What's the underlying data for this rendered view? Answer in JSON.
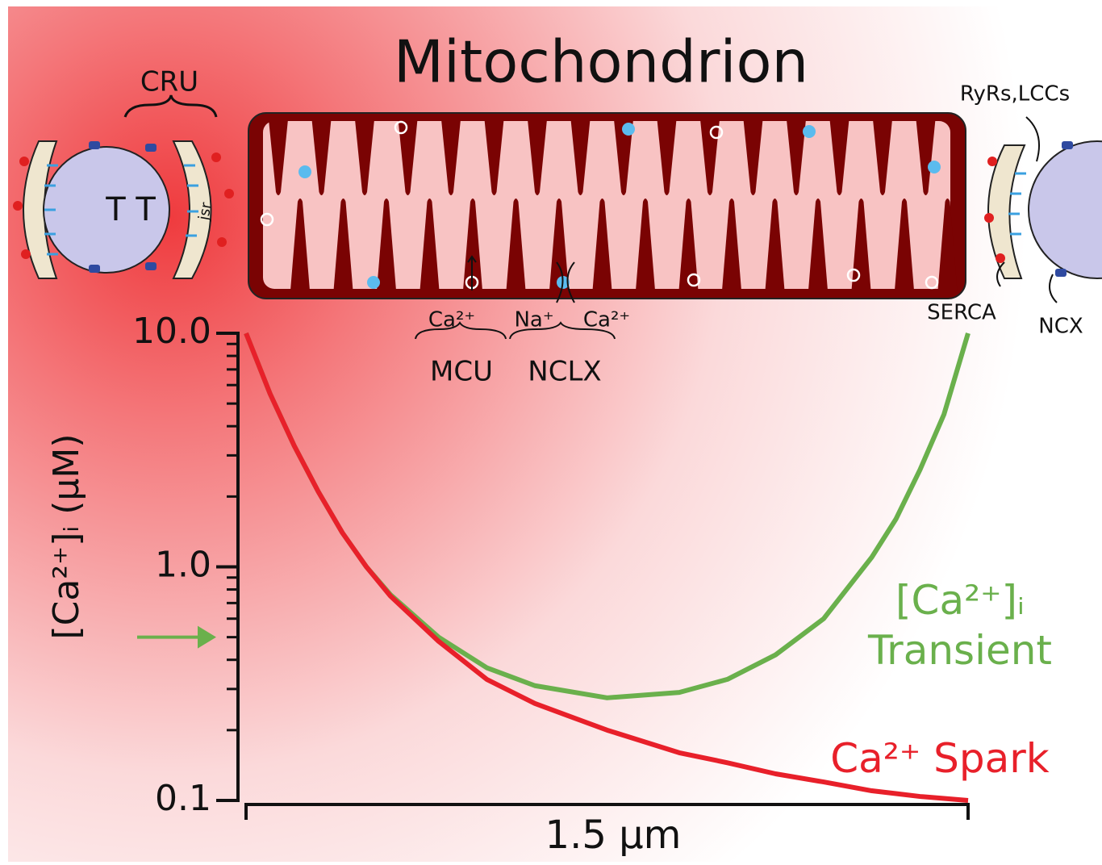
{
  "diagram": {
    "title": "Mitochondrion",
    "cru": "CRU",
    "tt": "T T",
    "jsr": "jsr",
    "ryrs": "RyRs,LCCs",
    "serca": "SERCA",
    "ncx": "NCX",
    "mcu_ion": "Ca²⁺",
    "nclx_na": "Na⁺",
    "nclx_ca": "Ca²⁺",
    "mcu": "MCU",
    "nclx": "NCLX"
  },
  "chart_data": {
    "type": "line",
    "ylabel": "[Ca²⁺]ᵢ (µM)",
    "log_y": true,
    "ylim": [
      0.1,
      10
    ],
    "yticks": [
      0.1,
      {
        "value": 1,
        "label": "1.0"
      },
      {
        "value": 10,
        "label": "10.0"
      }
    ],
    "yminor": [
      0.2,
      0.3,
      0.4,
      0.5,
      0.6,
      0.7,
      0.8,
      0.9,
      2,
      3,
      4,
      5,
      6,
      7,
      8,
      9
    ],
    "xlim": [
      0,
      1.5
    ],
    "scale_bar": "1.5 µm",
    "arrow_at": 0.5,
    "arrow_color": "#6ab04c",
    "x": [
      0,
      0.05,
      0.1,
      0.15,
      0.2,
      0.25,
      0.3,
      0.4,
      0.5,
      0.6,
      0.75,
      0.9,
      1.0,
      1.1,
      1.2,
      1.3,
      1.35,
      1.4,
      1.45,
      1.5
    ],
    "series": [
      {
        "name": "Ca²⁺ Spark",
        "color": "#e8202a",
        "values": [
          10,
          5.5,
          3.3,
          2.1,
          1.4,
          1.0,
          0.75,
          0.48,
          0.33,
          0.26,
          0.2,
          0.16,
          0.145,
          0.13,
          0.12,
          0.11,
          0.107,
          0.104,
          0.102,
          0.1
        ]
      },
      {
        "name": "[Ca²⁺]ᵢ\nTransient",
        "color": "#6ab04c",
        "values": [
          10,
          5.5,
          3.3,
          2.1,
          1.4,
          1.0,
          0.76,
          0.5,
          0.37,
          0.31,
          0.275,
          0.29,
          0.33,
          0.42,
          0.6,
          1.1,
          1.6,
          2.6,
          4.5,
          10
        ]
      }
    ]
  }
}
